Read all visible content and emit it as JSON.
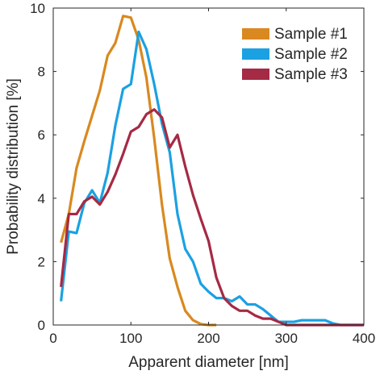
{
  "chart_data": {
    "type": "line",
    "xlabel": "Apparent diameter [nm]",
    "ylabel": "Probability distribution [%]",
    "xlim": [
      0,
      400
    ],
    "ylim": [
      0,
      10
    ],
    "xticks": [
      0,
      100,
      200,
      300,
      400
    ],
    "yticks": [
      0,
      2,
      4,
      6,
      8,
      10
    ],
    "grid": false,
    "legend_position": "top-right",
    "series": [
      {
        "name": "Sample #1",
        "color": "#D9891F",
        "x": [
          10,
          20,
          30,
          40,
          50,
          60,
          70,
          80,
          90,
          100,
          110,
          120,
          130,
          140,
          150,
          160,
          170,
          180,
          190,
          200,
          210
        ],
        "y": [
          2.6,
          3.5,
          4.95,
          5.8,
          6.6,
          7.4,
          8.5,
          8.9,
          9.75,
          9.7,
          9.0,
          7.8,
          5.9,
          3.8,
          2.1,
          1.2,
          0.45,
          0.15,
          0.03,
          0.0,
          0.0
        ]
      },
      {
        "name": "Sample #2",
        "color": "#1BA1E2",
        "x": [
          10,
          20,
          30,
          40,
          50,
          60,
          70,
          80,
          90,
          100,
          110,
          120,
          130,
          140,
          150,
          160,
          170,
          180,
          190,
          200,
          210,
          220,
          230,
          240,
          250,
          260,
          270,
          280,
          290,
          300,
          310,
          320,
          330,
          340,
          350,
          360,
          370,
          380,
          390,
          400
        ],
        "y": [
          0.75,
          2.95,
          2.9,
          3.85,
          4.25,
          3.85,
          4.8,
          6.3,
          7.45,
          7.6,
          9.25,
          8.7,
          7.6,
          6.35,
          5.45,
          3.5,
          2.4,
          2.0,
          1.3,
          1.05,
          0.85,
          0.85,
          0.75,
          0.9,
          0.65,
          0.65,
          0.5,
          0.3,
          0.1,
          0.1,
          0.1,
          0.15,
          0.15,
          0.15,
          0.15,
          0.05,
          0.0,
          0.0,
          0.0,
          0.0
        ]
      },
      {
        "name": "Sample #3",
        "color": "#A52A44",
        "x": [
          10,
          20,
          30,
          40,
          50,
          60,
          70,
          80,
          90,
          100,
          110,
          120,
          130,
          140,
          150,
          160,
          170,
          180,
          190,
          200,
          210,
          220,
          230,
          240,
          250,
          260,
          270,
          280,
          290,
          300,
          310,
          320,
          330,
          340,
          350,
          360,
          370,
          380,
          390,
          400
        ],
        "y": [
          1.2,
          3.5,
          3.5,
          3.9,
          4.05,
          3.8,
          4.2,
          4.75,
          5.4,
          6.1,
          6.25,
          6.65,
          6.8,
          6.55,
          5.6,
          6.0,
          5.0,
          4.1,
          3.35,
          2.65,
          1.5,
          0.85,
          0.6,
          0.45,
          0.45,
          0.3,
          0.2,
          0.2,
          0.1,
          0.0,
          0.0,
          0.0,
          0.0,
          0.0,
          0.0,
          0.0,
          0.0,
          0.0,
          0.0,
          0.0
        ]
      }
    ]
  }
}
